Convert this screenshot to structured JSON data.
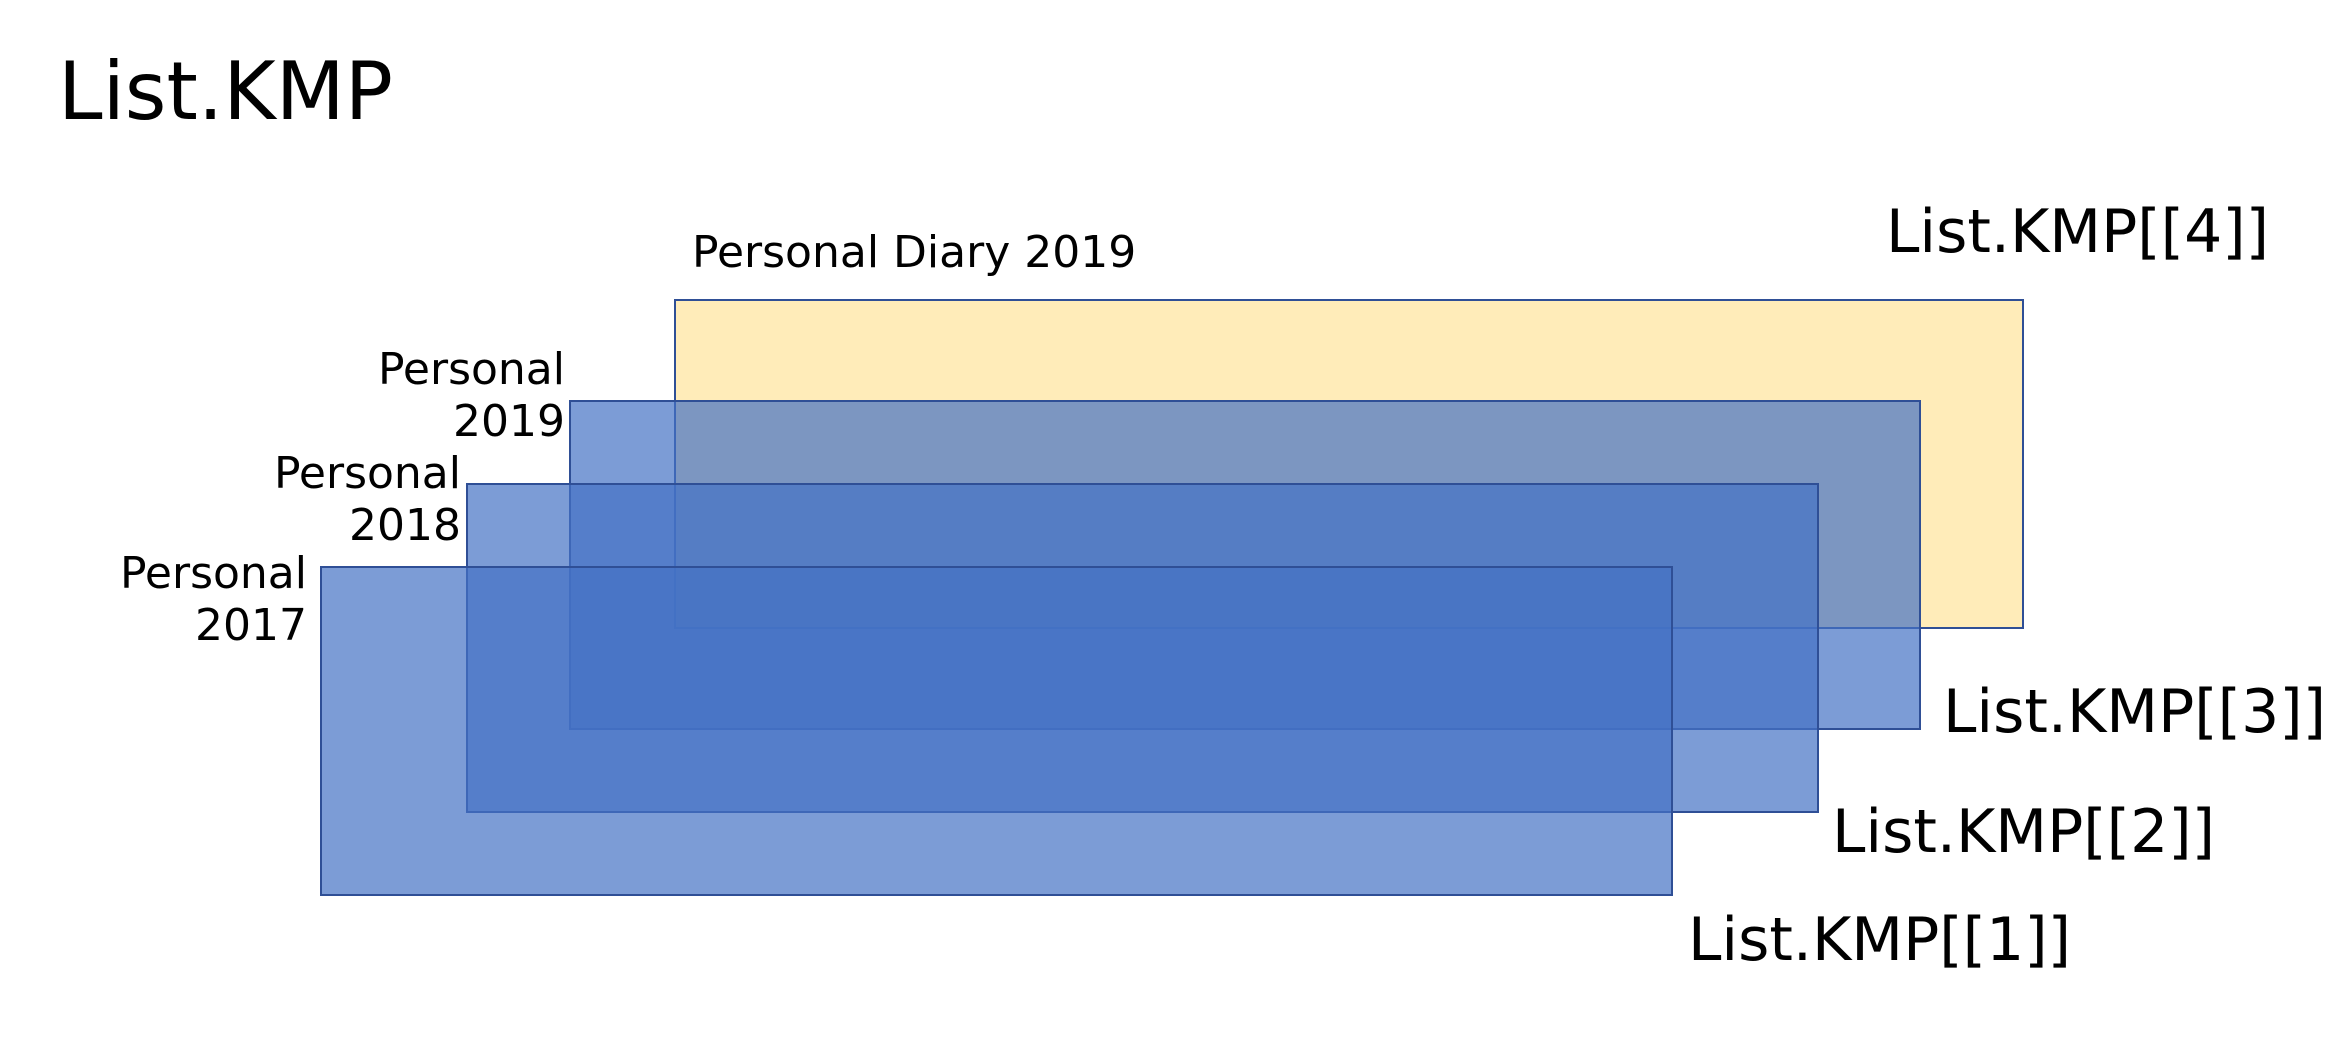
{
  "title": "List.KMP",
  "colors": {
    "yellow_fill": "#FFECB9",
    "blue_fill": "#4472C4",
    "border": "#2F4F96"
  },
  "layers": [
    {
      "name_lines": [
        "Personal",
        "2017"
      ],
      "index_label": "List.KMP[[1]]",
      "fill": "blue"
    },
    {
      "name_lines": [
        "Personal",
        "2018"
      ],
      "index_label": "List.KMP[[2]]",
      "fill": "blue"
    },
    {
      "name_lines": [
        "Personal",
        "2019"
      ],
      "index_label": "List.KMP[[3]]",
      "fill": "blue"
    },
    {
      "name_lines": [
        "Personal Diary 2019"
      ],
      "index_label": "List.KMP[[4]]",
      "fill": "yellow"
    }
  ]
}
